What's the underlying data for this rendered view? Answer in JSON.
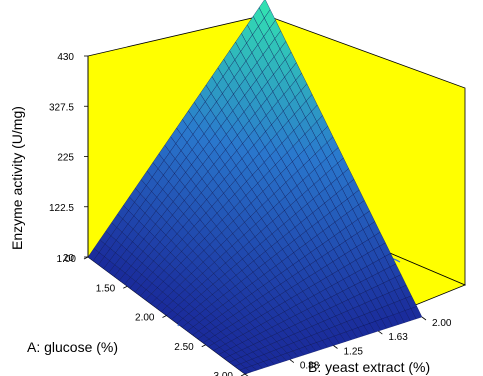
{
  "chart_data": {
    "type": "surface",
    "title": "",
    "zlabel": "Enzyme activity (U/mg)",
    "xlabel": "A: glucose (%)",
    "ylabel": "B: yeast extract (%)",
    "x_ticks": [
      "1.00",
      "1.50",
      "2.00",
      "2.50",
      "3.00"
    ],
    "y_ticks": [
      "0.50",
      "0.88",
      "1.25",
      "1.63",
      "2.00"
    ],
    "z_ticks": [
      "20",
      "122.5",
      "225",
      "327.5",
      "430"
    ],
    "x_range": [
      1.0,
      3.0
    ],
    "y_range": [
      0.5,
      2.0
    ],
    "z_range": [
      20,
      430
    ],
    "corner_values": [
      {
        "glucose": 1.0,
        "yeast_extract": 0.5,
        "activity": 20
      },
      {
        "glucose": 1.0,
        "yeast_extract": 2.0,
        "activity": 430
      },
      {
        "glucose": 3.0,
        "yeast_extract": 2.0,
        "activity": 20
      },
      {
        "glucose": 3.0,
        "yeast_extract": 0.5,
        "activity": 20
      }
    ],
    "wall_color": "#ffff00",
    "surface_low_color": "#1a2a9a",
    "surface_high_color": "#33e6b0"
  }
}
